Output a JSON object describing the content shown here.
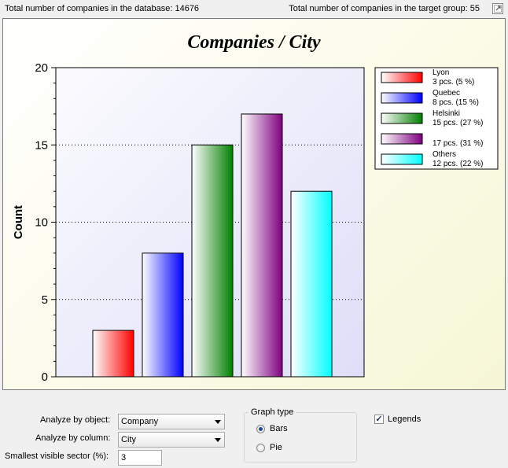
{
  "header": {
    "total_label": "Total number of companies in the database: 14676",
    "target_label": "Total number of companies in the target group: 55"
  },
  "chart_data": {
    "type": "bar",
    "title": "Companies / City",
    "xlabel": "",
    "ylabel": "Count",
    "ylim": [
      0,
      20
    ],
    "yticks": [
      "0",
      "5",
      "10",
      "15",
      "20"
    ],
    "grid": "horizontal dotted",
    "legend_position": "top-right",
    "categories": [
      "Lyon",
      "Quebec",
      "Helsinki",
      "",
      "Others"
    ],
    "values": [
      3,
      8,
      15,
      17,
      12
    ],
    "colors": [
      "#ff0000",
      "#0000ff",
      "#008000",
      "#800080",
      "#00ffff"
    ],
    "legend": [
      {
        "name": "Lyon",
        "detail": "3 pcs. (5 %)"
      },
      {
        "name": "Quebec",
        "detail": "8 pcs. (15 %)"
      },
      {
        "name": "Helsinki",
        "detail": "15 pcs. (27 %)"
      },
      {
        "name": "",
        "detail": "17 pcs. (31 %)"
      },
      {
        "name": "Others",
        "detail": "12 pcs. (22 %)"
      }
    ]
  },
  "controls": {
    "analyze_object_label": "Analyze by object:",
    "analyze_object_value": "Company",
    "analyze_column_label": "Analyze by column:",
    "analyze_column_value": "City",
    "smallest_sector_label": "Smallest visible sector (%):",
    "smallest_sector_value": "3",
    "graph_type_label": "Graph type",
    "graph_type_options": [
      "Bars",
      "Pie"
    ],
    "graph_type_selected": "Bars",
    "legends_label": "Legends",
    "legends_checked": true
  }
}
